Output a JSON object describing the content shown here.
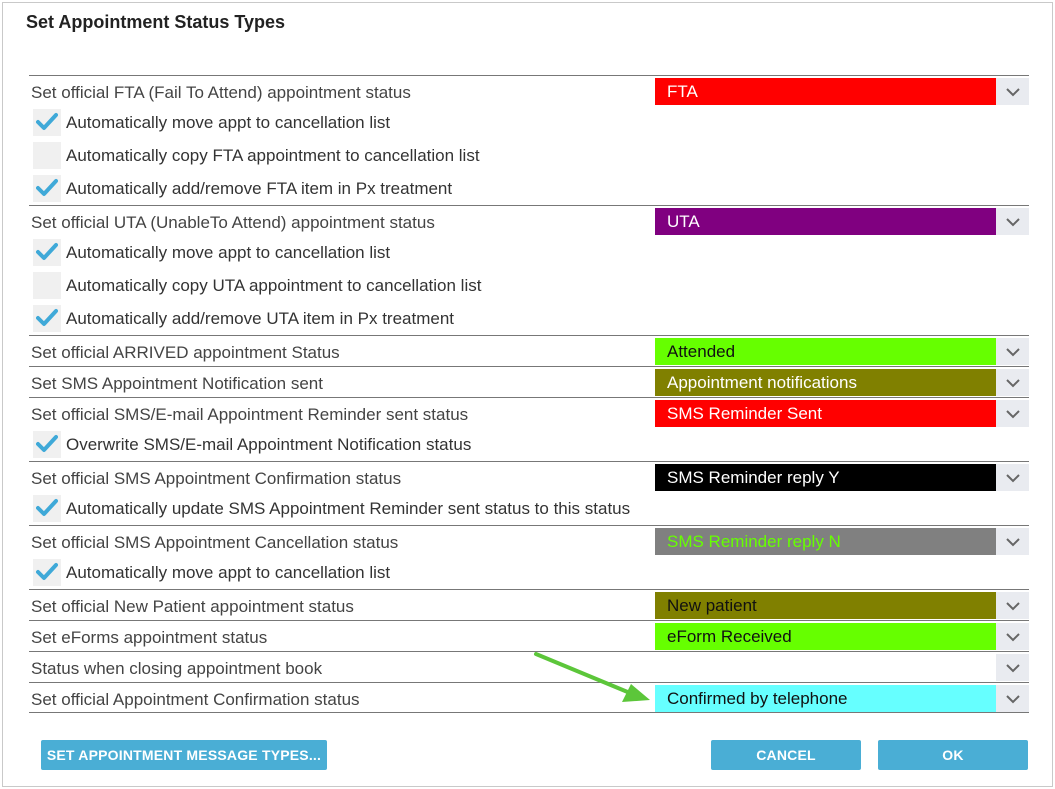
{
  "dialog": {
    "title": "Set Appointment Status Types"
  },
  "rows": [
    {
      "kind": "status",
      "label": "Set official FTA (Fail To Attend) appointment status",
      "value": "FTA",
      "bg": "#ff0000",
      "fg": "#ffffff"
    },
    {
      "kind": "check",
      "checked": true,
      "label": "Automatically move appt to cancellation list"
    },
    {
      "kind": "check",
      "checked": false,
      "label": "Automatically copy FTA appointment to cancellation list"
    },
    {
      "kind": "check",
      "checked": true,
      "label": "Automatically add/remove FTA item in Px treatment"
    },
    {
      "kind": "status",
      "label": "Set official UTA (UnableTo Attend) appointment status",
      "value": "UTA",
      "bg": "#800080",
      "fg": "#ffffff"
    },
    {
      "kind": "check",
      "checked": true,
      "label": "Automatically move appt to cancellation list"
    },
    {
      "kind": "check",
      "checked": false,
      "label": "Automatically copy UTA appointment to cancellation list"
    },
    {
      "kind": "check",
      "checked": true,
      "label": "Automatically add/remove UTA item in Px treatment"
    },
    {
      "kind": "status",
      "label": "Set official ARRIVED appointment Status",
      "value": "Attended",
      "bg": "#66ff00",
      "fg": "#111111"
    },
    {
      "kind": "status",
      "label": "Set SMS Appointment Notification sent",
      "value": "Appointment notifications",
      "bg": "#808000",
      "fg": "#ffffff"
    },
    {
      "kind": "status",
      "label": "Set official SMS/E-mail Appointment Reminder sent status",
      "value": "SMS Reminder Sent",
      "bg": "#ff0000",
      "fg": "#ffffff"
    },
    {
      "kind": "check",
      "checked": true,
      "label": "Overwrite SMS/E-mail Appointment Notification status"
    },
    {
      "kind": "status",
      "label": "Set official SMS Appointment Confirmation status",
      "value": "SMS Reminder reply Y",
      "bg": "#000000",
      "fg": "#ffffff"
    },
    {
      "kind": "check",
      "checked": true,
      "label": "Automatically update SMS Appointment Reminder sent status to this status"
    },
    {
      "kind": "status",
      "label": "Set official SMS Appointment Cancellation status",
      "value": "SMS Reminder reply N",
      "bg": "#808080",
      "fg": "#66ff00"
    },
    {
      "kind": "check",
      "checked": true,
      "label": "Automatically move appt to cancellation list"
    },
    {
      "kind": "status",
      "label": "Set official New Patient appointment status",
      "value": "New patient",
      "bg": "#808000",
      "fg": "#111111"
    },
    {
      "kind": "status",
      "label": "Set eForms appointment status",
      "value": "eForm Received",
      "bg": "#66ff00",
      "fg": "#111111"
    },
    {
      "kind": "status",
      "label": "Status when closing appointment book",
      "value": "",
      "bg": "#ffffff",
      "fg": "#111111"
    },
    {
      "kind": "status",
      "label": "Set official Appointment Confirmation status",
      "value": "Confirmed by telephone",
      "bg": "#66ffff",
      "fg": "#111111"
    }
  ],
  "buttons": {
    "message_types": "SET APPOINTMENT MESSAGE TYPES...",
    "cancel": "CANCEL",
    "ok": "OK"
  },
  "colors": {
    "accent": "#4aaed5",
    "check": "#3fa9d8",
    "annotation_arrow": "#5cc63a"
  }
}
